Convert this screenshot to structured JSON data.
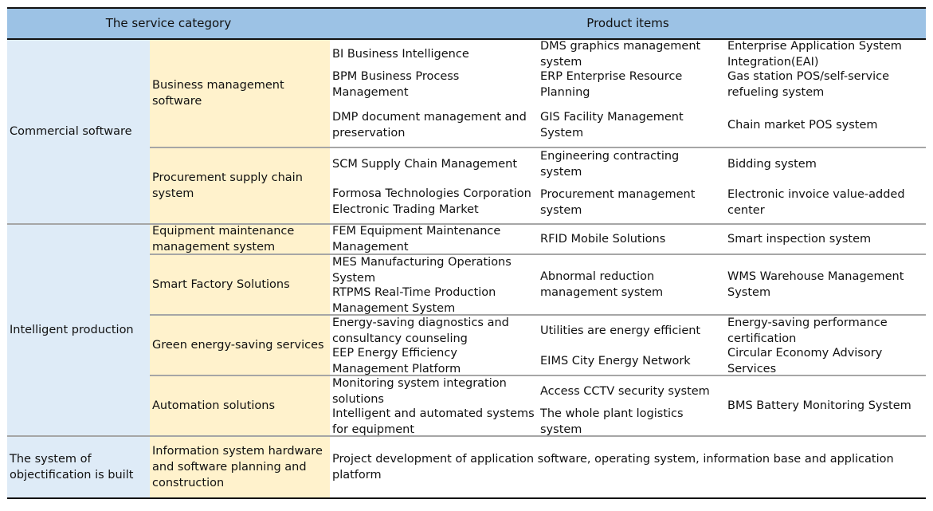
{
  "header": {
    "service_category": "The service category",
    "product_items": "Product items"
  },
  "categories": {
    "commercial": "Commercial software",
    "intelligent": "Intelligent production",
    "objectification": "The system of objectification is built"
  },
  "subcategories": {
    "business_mgmt": "Business management software",
    "procurement": "Procurement supply chain system",
    "equipment": "Equipment maintenance management system",
    "smart_factory": "Smart Factory Solutions",
    "green_energy": "Green energy-saving services",
    "automation": "Automation solutions",
    "info_system": "Information system hardware and software planning and construction"
  },
  "products": {
    "bi": "BI Business Intelligence",
    "dms": "DMS graphics management system",
    "eai": "Enterprise Application System Integration(EAI)",
    "bpm": "BPM Business Process Management",
    "erp": "ERP Enterprise Resource Planning",
    "gas_pos": "Gas station POS/self-service refueling system",
    "dmp": "DMP document management and preservation",
    "gis": "GIS Facility Management System",
    "chain_pos": "Chain market POS system",
    "scm": "SCM Supply Chain Management",
    "eng_contract": "Engineering contracting system",
    "bidding": "Bidding system",
    "formosa": "Formosa Technologies Corporation Electronic Trading Market",
    "procure_mgmt": "Procurement management system",
    "einvoice": "Electronic invoice value-added center",
    "fem": "FEM Equipment Maintenance Management",
    "rfid": "RFID Mobile Solutions",
    "smart_insp": "Smart inspection system",
    "mes": "MES Manufacturing Operations System",
    "rtpms": "RTPMS Real-Time Production Management System",
    "abnormal": "Abnormal reduction management system",
    "wms": "WMS Warehouse Management System",
    "energy_diag": "Energy-saving diagnostics and consultancy counseling",
    "utilities": "Utilities are energy efficient",
    "energy_perf": "Energy-saving performance certification",
    "eep": "EEP Energy Efficiency Management Platform",
    "eims": "EIMS City Energy Network",
    "circular": "Circular Economy Advisory Services",
    "monitoring": "Monitoring system integration solutions",
    "cctv": "Access CCTV  security system",
    "bms": "BMS Battery Monitoring System",
    "intel_auto": "Intelligent and automated systems for equipment",
    "logistics": "The whole plant logistics system",
    "project_dev": "Project development of application software, operating system, information base and application platform"
  }
}
